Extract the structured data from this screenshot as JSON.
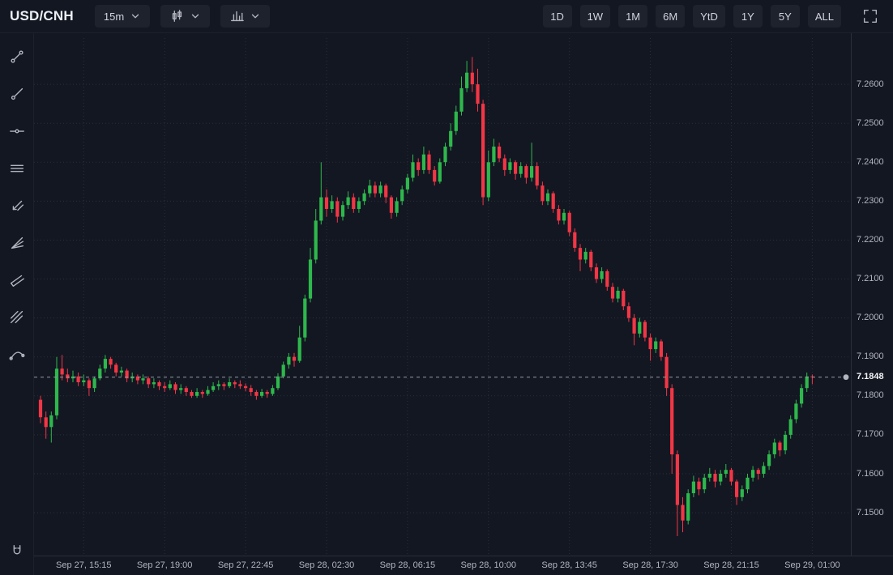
{
  "header": {
    "symbol": "USD/CNH",
    "interval": "15m",
    "range_buttons": [
      "1D",
      "1W",
      "1M",
      "6M",
      "YtD",
      "1Y",
      "5Y",
      "ALL"
    ],
    "icons": {
      "interval_dropdown": "chevron-down-icon",
      "chart_type": "candlestick-icon",
      "indicators": "columns-icon",
      "fullscreen": "fullscreen-icon"
    }
  },
  "drawing_toolbar": {
    "tools": [
      "trend-line",
      "ray",
      "horizontal-line",
      "parallel-lines",
      "arrows",
      "fan",
      "flag-channel",
      "hatch-channel",
      "curve"
    ],
    "bottom_tool": "magnet"
  },
  "chart_data": {
    "type": "candlestick",
    "title": "USD/CNH 15m candlestick chart",
    "symbol": "USD/CNH",
    "interval": "15m",
    "up_color": "#2eb84c",
    "down_color": "#f23645",
    "grid": true,
    "current_price": 7.1848,
    "current_price_label": "7.1848",
    "price_line_color": "#9598a1",
    "ylim": [
      7.139,
      7.27
    ],
    "y_ticks": [
      7.26,
      7.25,
      7.24,
      7.23,
      7.22,
      7.21,
      7.2,
      7.19,
      7.18,
      7.17,
      7.16,
      7.15
    ],
    "x_ticks": [
      {
        "index": 8,
        "label": "Sep 27, 15:15"
      },
      {
        "index": 23,
        "label": "Sep 27, 19:00"
      },
      {
        "index": 38,
        "label": "Sep 27, 22:45"
      },
      {
        "index": 53,
        "label": "Sep 28, 02:30"
      },
      {
        "index": 68,
        "label": "Sep 28, 06:15"
      },
      {
        "index": 83,
        "label": "Sep 28, 10:00"
      },
      {
        "index": 98,
        "label": "Sep 28, 13:45"
      },
      {
        "index": 113,
        "label": "Sep 28, 17:30"
      },
      {
        "index": 128,
        "label": "Sep 28, 21:15"
      },
      {
        "index": 143,
        "label": "Sep 29, 01:00"
      }
    ],
    "candles": [
      [
        7.179,
        7.18,
        7.173,
        7.1745
      ],
      [
        7.1745,
        7.176,
        7.169,
        7.172
      ],
      [
        7.172,
        7.176,
        7.168,
        7.175
      ],
      [
        7.175,
        7.19,
        7.174,
        7.187
      ],
      [
        7.187,
        7.1905,
        7.184,
        7.1855
      ],
      [
        7.1855,
        7.187,
        7.1835,
        7.1845
      ],
      [
        7.1845,
        7.1865,
        7.1835,
        7.185
      ],
      [
        7.185,
        7.186,
        7.1825,
        7.1835
      ],
      [
        7.1835,
        7.1855,
        7.1825,
        7.184
      ],
      [
        7.184,
        7.1845,
        7.18,
        7.182
      ],
      [
        7.182,
        7.185,
        7.181,
        7.1845
      ],
      [
        7.1845,
        7.188,
        7.184,
        7.187
      ],
      [
        7.187,
        7.1905,
        7.186,
        7.1895
      ],
      [
        7.1895,
        7.19,
        7.187,
        7.188
      ],
      [
        7.188,
        7.1885,
        7.185,
        7.186
      ],
      [
        7.186,
        7.1875,
        7.185,
        7.1865
      ],
      [
        7.1865,
        7.187,
        7.1835,
        7.1845
      ],
      [
        7.1845,
        7.186,
        7.1835,
        7.185
      ],
      [
        7.185,
        7.1855,
        7.183,
        7.184
      ],
      [
        7.184,
        7.1855,
        7.183,
        7.1845
      ],
      [
        7.1845,
        7.185,
        7.182,
        7.183
      ],
      [
        7.183,
        7.1845,
        7.182,
        7.1835
      ],
      [
        7.1835,
        7.184,
        7.1815,
        7.1825
      ],
      [
        7.1825,
        7.1835,
        7.181,
        7.182
      ],
      [
        7.182,
        7.184,
        7.1815,
        7.183
      ],
      [
        7.183,
        7.1835,
        7.1805,
        7.1815
      ],
      [
        7.1815,
        7.183,
        7.1805,
        7.182
      ],
      [
        7.182,
        7.1825,
        7.18,
        7.181
      ],
      [
        7.181,
        7.1815,
        7.1795,
        7.18
      ],
      [
        7.18,
        7.182,
        7.1795,
        7.181
      ],
      [
        7.181,
        7.1815,
        7.1795,
        7.1805
      ],
      [
        7.1805,
        7.1825,
        7.18,
        7.1815
      ],
      [
        7.1815,
        7.1835,
        7.181,
        7.1825
      ],
      [
        7.1825,
        7.184,
        7.1815,
        7.183
      ],
      [
        7.183,
        7.1835,
        7.1815,
        7.1825
      ],
      [
        7.1825,
        7.1845,
        7.182,
        7.1835
      ],
      [
        7.1835,
        7.184,
        7.182,
        7.183
      ],
      [
        7.183,
        7.184,
        7.1818,
        7.1825
      ],
      [
        7.1825,
        7.1832,
        7.1812,
        7.182
      ],
      [
        7.182,
        7.1828,
        7.18,
        7.181
      ],
      [
        7.181,
        7.1815,
        7.179,
        7.18
      ],
      [
        7.18,
        7.1818,
        7.1795,
        7.181
      ],
      [
        7.181,
        7.1815,
        7.1795,
        7.1805
      ],
      [
        7.1805,
        7.1828,
        7.18,
        7.182
      ],
      [
        7.182,
        7.1858,
        7.1815,
        7.185
      ],
      [
        7.185,
        7.1888,
        7.1845,
        7.188
      ],
      [
        7.188,
        7.191,
        7.187,
        7.19
      ],
      [
        7.19,
        7.191,
        7.1875,
        7.189
      ],
      [
        7.189,
        7.198,
        7.1885,
        7.195
      ],
      [
        7.195,
        7.206,
        7.194,
        7.205
      ],
      [
        7.205,
        7.218,
        7.204,
        7.215
      ],
      [
        7.215,
        7.228,
        7.214,
        7.225
      ],
      [
        7.225,
        7.24,
        7.224,
        7.231
      ],
      [
        7.231,
        7.233,
        7.226,
        7.228
      ],
      [
        7.228,
        7.2315,
        7.227,
        7.23
      ],
      [
        7.23,
        7.231,
        7.2245,
        7.226
      ],
      [
        7.226,
        7.23,
        7.225,
        7.229
      ],
      [
        7.229,
        7.2325,
        7.228,
        7.231
      ],
      [
        7.231,
        7.232,
        7.227,
        7.228
      ],
      [
        7.228,
        7.231,
        7.227,
        7.23
      ],
      [
        7.23,
        7.233,
        7.229,
        7.232
      ],
      [
        7.232,
        7.2355,
        7.231,
        7.234
      ],
      [
        7.234,
        7.235,
        7.231,
        7.232
      ],
      [
        7.232,
        7.235,
        7.231,
        7.234
      ],
      [
        7.234,
        7.2345,
        7.2295,
        7.231
      ],
      [
        7.231,
        7.2315,
        7.2255,
        7.227
      ],
      [
        7.227,
        7.231,
        7.226,
        7.23
      ],
      [
        7.23,
        7.234,
        7.229,
        7.233
      ],
      [
        7.233,
        7.237,
        7.232,
        7.236
      ],
      [
        7.236,
        7.242,
        7.235,
        7.24
      ],
      [
        7.24,
        7.241,
        7.2365,
        7.238
      ],
      [
        7.238,
        7.244,
        7.237,
        7.242
      ],
      [
        7.242,
        7.243,
        7.237,
        7.238
      ],
      [
        7.238,
        7.239,
        7.234,
        7.235
      ],
      [
        7.235,
        7.241,
        7.2345,
        7.24
      ],
      [
        7.24,
        7.245,
        7.239,
        7.244
      ],
      [
        7.244,
        7.25,
        7.243,
        7.248
      ],
      [
        7.248,
        7.2545,
        7.247,
        7.253
      ],
      [
        7.253,
        7.262,
        7.252,
        7.259
      ],
      [
        7.259,
        7.266,
        7.258,
        7.263
      ],
      [
        7.263,
        7.267,
        7.258,
        7.26
      ],
      [
        7.26,
        7.264,
        7.253,
        7.255
      ],
      [
        7.255,
        7.256,
        7.229,
        7.231
      ],
      [
        7.231,
        7.243,
        7.23,
        7.24
      ],
      [
        7.24,
        7.246,
        7.239,
        7.244
      ],
      [
        7.244,
        7.245,
        7.24,
        7.241
      ],
      [
        7.241,
        7.242,
        7.2365,
        7.238
      ],
      [
        7.238,
        7.241,
        7.237,
        7.24
      ],
      [
        7.24,
        7.2405,
        7.2355,
        7.237
      ],
      [
        7.237,
        7.24,
        7.236,
        7.239
      ],
      [
        7.239,
        7.2395,
        7.2345,
        7.236
      ],
      [
        7.236,
        7.245,
        7.235,
        7.239
      ],
      [
        7.239,
        7.24,
        7.233,
        7.234
      ],
      [
        7.234,
        7.235,
        7.229,
        7.23
      ],
      [
        7.23,
        7.233,
        7.229,
        7.232
      ],
      [
        7.232,
        7.2325,
        7.227,
        7.228
      ],
      [
        7.228,
        7.229,
        7.224,
        7.225
      ],
      [
        7.225,
        7.228,
        7.224,
        7.227
      ],
      [
        7.227,
        7.2275,
        7.221,
        7.222
      ],
      [
        7.222,
        7.223,
        7.217,
        7.218
      ],
      [
        7.218,
        7.219,
        7.212,
        7.215
      ],
      [
        7.215,
        7.218,
        7.214,
        7.217
      ],
      [
        7.217,
        7.2175,
        7.212,
        7.213
      ],
      [
        7.213,
        7.214,
        7.209,
        7.21
      ],
      [
        7.21,
        7.213,
        7.209,
        7.212
      ],
      [
        7.212,
        7.2125,
        7.207,
        7.208
      ],
      [
        7.208,
        7.209,
        7.204,
        7.205
      ],
      [
        7.205,
        7.208,
        7.204,
        7.207
      ],
      [
        7.207,
        7.2075,
        7.202,
        7.203
      ],
      [
        7.203,
        7.204,
        7.199,
        7.2
      ],
      [
        7.2,
        7.201,
        7.193,
        7.196
      ],
      [
        7.196,
        7.2,
        7.195,
        7.199
      ],
      [
        7.199,
        7.1995,
        7.194,
        7.195
      ],
      [
        7.195,
        7.196,
        7.189,
        7.192
      ],
      [
        7.192,
        7.195,
        7.191,
        7.194
      ],
      [
        7.194,
        7.1945,
        7.189,
        7.19
      ],
      [
        7.19,
        7.191,
        7.18,
        7.182
      ],
      [
        7.182,
        7.183,
        7.16,
        7.165
      ],
      [
        7.165,
        7.166,
        7.144,
        7.152
      ],
      [
        7.152,
        7.154,
        7.145,
        7.148
      ],
      [
        7.148,
        7.156,
        7.147,
        7.155
      ],
      [
        7.155,
        7.1595,
        7.154,
        7.158
      ],
      [
        7.158,
        7.159,
        7.1545,
        7.156
      ],
      [
        7.156,
        7.16,
        7.155,
        7.159
      ],
      [
        7.159,
        7.1615,
        7.158,
        7.16
      ],
      [
        7.16,
        7.161,
        7.1565,
        7.158
      ],
      [
        7.158,
        7.161,
        7.157,
        7.16
      ],
      [
        7.16,
        7.1625,
        7.159,
        7.161
      ],
      [
        7.161,
        7.1615,
        7.157,
        7.158
      ],
      [
        7.158,
        7.1585,
        7.152,
        7.154
      ],
      [
        7.154,
        7.157,
        7.153,
        7.156
      ],
      [
        7.156,
        7.16,
        7.155,
        7.159
      ],
      [
        7.159,
        7.162,
        7.158,
        7.161
      ],
      [
        7.161,
        7.1615,
        7.1585,
        7.16
      ],
      [
        7.16,
        7.163,
        7.159,
        7.162
      ],
      [
        7.162,
        7.166,
        7.161,
        7.165
      ],
      [
        7.165,
        7.169,
        7.164,
        7.168
      ],
      [
        7.168,
        7.1685,
        7.1645,
        7.166
      ],
      [
        7.166,
        7.171,
        7.165,
        7.17
      ],
      [
        7.17,
        7.175,
        7.169,
        7.174
      ],
      [
        7.174,
        7.179,
        7.173,
        7.178
      ],
      [
        7.178,
        7.183,
        7.177,
        7.182
      ],
      [
        7.182,
        7.186,
        7.181,
        7.185
      ],
      [
        7.185,
        7.1855,
        7.183,
        7.1848
      ]
    ]
  }
}
